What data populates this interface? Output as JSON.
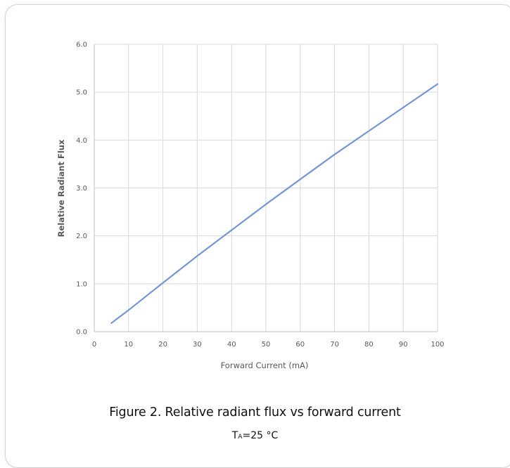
{
  "chart_data": {
    "type": "line",
    "xlabel": "Forward Current (mA)",
    "ylabel": "Relative Radiant Flux",
    "xlim": [
      0,
      100
    ],
    "ylim": [
      0.0,
      6.0
    ],
    "x_ticks": [
      "0",
      "10",
      "20",
      "30",
      "40",
      "50",
      "60",
      "70",
      "80",
      "90",
      "100"
    ],
    "y_ticks": [
      "0.0",
      "1.0",
      "2.0",
      "3.0",
      "4.0",
      "5.0",
      "6.0"
    ],
    "grid": true,
    "series": [
      {
        "color": "#7596d4",
        "x": [
          5,
          10,
          20,
          30,
          40,
          50,
          60,
          70,
          80,
          90,
          100
        ],
        "y": [
          0.18,
          0.45,
          1.02,
          1.58,
          2.12,
          2.66,
          3.18,
          3.7,
          4.19,
          4.68,
          5.17
        ]
      }
    ]
  },
  "caption": {
    "title": "Figure 2. Relative radiant flux vs forward current",
    "condition_prefix": "T",
    "condition_sub": "A",
    "condition_suffix": "=25 °C"
  }
}
